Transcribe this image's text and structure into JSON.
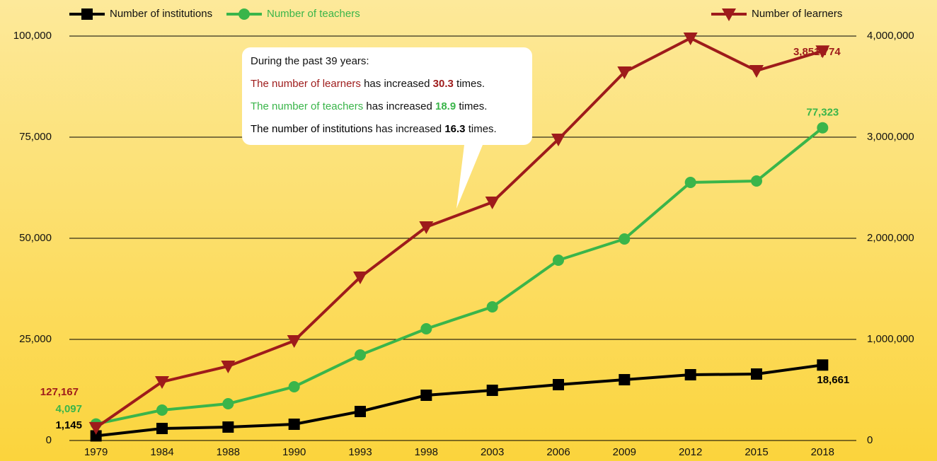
{
  "chart_data": {
    "type": "line",
    "categories": [
      "1979",
      "1984",
      "1988",
      "1990",
      "1993",
      "1998",
      "2003",
      "2006",
      "2009",
      "2012",
      "2015",
      "2018"
    ],
    "series": [
      {
        "name": "Number of institutions",
        "color": "#000000",
        "marker": "square",
        "axis": "y",
        "values": [
          1145,
          2970,
          3320,
          4020,
          7170,
          11190,
          12410,
          13810,
          15030,
          16260,
          16430,
          18661
        ],
        "value_labels": [
          "1,145",
          null,
          null,
          null,
          null,
          null,
          null,
          null,
          null,
          null,
          null,
          "18,661"
        ]
      },
      {
        "name": "Number of teachers",
        "color": "#3ab54a",
        "marker": "circle",
        "axis": "y",
        "values": [
          4097,
          7520,
          9090,
          13290,
          21150,
          27620,
          33040,
          44580,
          49830,
          63810,
          64160,
          77323
        ],
        "value_labels": [
          "4,097",
          null,
          null,
          null,
          null,
          null,
          null,
          null,
          null,
          null,
          null,
          "77,323"
        ]
      },
      {
        "name": "Number of learners",
        "color": "#9e1b1b",
        "marker": "triangle-down",
        "axis": "y2",
        "values": [
          127167,
          580420,
          734270,
          986000,
          1615380,
          2111890,
          2356640,
          2979020,
          3643360,
          3979020,
          3657340,
          3851774
        ],
        "value_labels": [
          "127,167",
          null,
          null,
          null,
          null,
          null,
          null,
          null,
          null,
          null,
          null,
          "3,851,774"
        ]
      }
    ],
    "ylim": [
      0,
      100000
    ],
    "yticks": [
      0,
      {
        "value": 25000,
        "label": "25,000"
      },
      {
        "value": 50000,
        "label": "50,000"
      },
      {
        "value": 75000,
        "label": "75,000"
      },
      {
        "value": 100000,
        "label": "100,000"
      }
    ],
    "y2lim": [
      0,
      4000000
    ],
    "y2ticks": [
      0,
      {
        "value": 1000000,
        "label": "1,000,000"
      },
      {
        "value": 2000000,
        "label": "2,000,000"
      },
      {
        "value": 3000000,
        "label": "3,000,000"
      },
      {
        "value": 4000000,
        "label": "4,000,000"
      }
    ],
    "grid": true,
    "annotation": {
      "heading": "During the past 39 years:",
      "lines": [
        {
          "subject": "The number of learners",
          "verb": " has increased ",
          "factor": "30.3",
          "end": " times.",
          "color": "#9e1b1b"
        },
        {
          "subject": "The number of teachers",
          "verb": " has increased ",
          "factor": "18.9",
          "end": " times.",
          "color": "#3ab54a"
        },
        {
          "subject": "The number of institutions",
          "verb": " has increased ",
          "factor": "16.3",
          "end": " times.",
          "color": "#000000"
        }
      ]
    }
  }
}
